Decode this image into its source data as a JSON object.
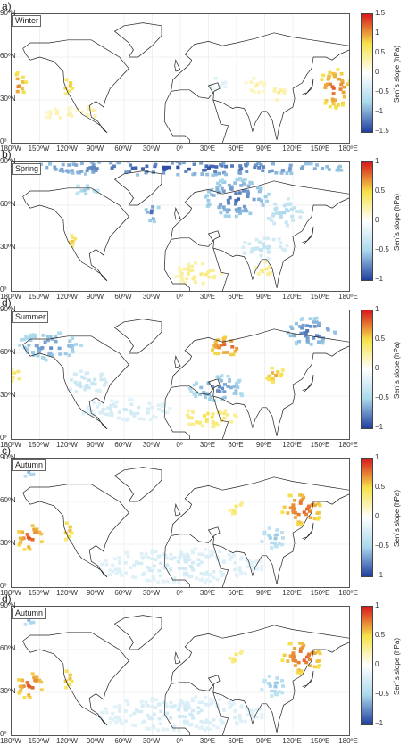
{
  "colorbar_title": "Sen´s slope (hPa)",
  "x_ticks": [
    "180ºW",
    "150ºW",
    "120ºW",
    "90ºW",
    "60ºW",
    "30ºW",
    "0º",
    "30ºE",
    "60ºE",
    "90ºE",
    "120ºE",
    "150ºE",
    "180ºE"
  ],
  "y_ticks": [
    "90ºN",
    "60ºN",
    "30ºN",
    "0º"
  ],
  "colors": {
    "neg_strong": "#1f3f9e",
    "neg_light": "#a9d8ec",
    "pos_light": "#f6e24a",
    "pos_strong": "#d7191c",
    "zero": "#ffffff",
    "land": "#222222"
  },
  "chart_data": [
    {
      "type": "heatmap",
      "panel_label": "a)",
      "season": "Winter",
      "xlim": [
        -180,
        180
      ],
      "ylim": [
        0,
        90
      ],
      "colorbar_ticks": [
        "1.5",
        "1",
        "0.5",
        "0",
        "−0.5",
        "−1",
        "−1.5"
      ],
      "clim": [
        -1.5,
        1.5
      ],
      "blobs": [
        {
          "lon": -175,
          "lat": 40,
          "rlon": 12,
          "rlat": 10,
          "value": 1.2
        },
        {
          "lon": -120,
          "lat": 40,
          "rlon": 8,
          "rlat": 6,
          "value": 1.0
        },
        {
          "lon": -125,
          "lat": 20,
          "rlon": 20,
          "rlat": 5,
          "value": 0.4
        },
        {
          "lon": -95,
          "lat": 22,
          "rlon": 10,
          "rlat": 5,
          "value": 0.5
        },
        {
          "lon": 80,
          "lat": 40,
          "rlon": 12,
          "rlat": 6,
          "value": 0.4
        },
        {
          "lon": 105,
          "lat": 35,
          "rlon": 8,
          "rlat": 6,
          "value": 0.5
        },
        {
          "lon": 165,
          "lat": 38,
          "rlon": 18,
          "rlat": 14,
          "value": 1.3
        },
        {
          "lon": 40,
          "lat": 42,
          "rlon": 10,
          "rlat": 5,
          "value": -0.4
        }
      ]
    },
    {
      "type": "heatmap",
      "panel_label": "b)",
      "season": "Spring",
      "xlim": [
        -180,
        180
      ],
      "ylim": [
        0,
        90
      ],
      "colorbar_ticks": [
        "1",
        "0.5",
        "0",
        "−0.5",
        "−1"
      ],
      "clim": [
        -1,
        1
      ],
      "blobs": [
        {
          "lon": 0,
          "lat": 86,
          "rlon": 180,
          "rlat": 5,
          "value": -1.0
        },
        {
          "lon": 60,
          "lat": 65,
          "rlon": 35,
          "rlat": 14,
          "value": -0.9
        },
        {
          "lon": -30,
          "lat": 55,
          "rlon": 8,
          "rlat": 7,
          "value": -0.9
        },
        {
          "lon": -100,
          "lat": 70,
          "rlon": 12,
          "rlat": 6,
          "value": -0.6
        },
        {
          "lon": -115,
          "lat": 35,
          "rlon": 5,
          "rlat": 4,
          "value": 0.6
        },
        {
          "lon": 20,
          "lat": 12,
          "rlon": 25,
          "rlat": 8,
          "value": 0.4
        },
        {
          "lon": 90,
          "lat": 15,
          "rlon": 10,
          "rlat": 6,
          "value": 0.4
        },
        {
          "lon": 90,
          "lat": 30,
          "rlon": 25,
          "rlat": 8,
          "value": -0.4
        },
        {
          "lon": 110,
          "lat": 55,
          "rlon": 20,
          "rlat": 10,
          "value": -0.5
        }
      ]
    },
    {
      "type": "heatmap",
      "panel_label": "d)",
      "season": "Summer",
      "xlim": [
        -180,
        180
      ],
      "ylim": [
        0,
        90
      ],
      "colorbar_ticks": [
        "1",
        "0.5",
        "0",
        "−0.5",
        "−1"
      ],
      "clim": [
        -1,
        1
      ],
      "blobs": [
        {
          "lon": -140,
          "lat": 65,
          "rlon": 35,
          "rlat": 10,
          "value": -0.8
        },
        {
          "lon": -100,
          "lat": 40,
          "rlon": 25,
          "rlat": 8,
          "value": -0.4
        },
        {
          "lon": 50,
          "lat": 65,
          "rlon": 20,
          "rlat": 7,
          "value": 0.9
        },
        {
          "lon": 140,
          "lat": 75,
          "rlon": 30,
          "rlat": 10,
          "value": -0.9
        },
        {
          "lon": 40,
          "lat": 35,
          "rlon": 30,
          "rlat": 10,
          "value": -0.8
        },
        {
          "lon": 30,
          "lat": 15,
          "rlon": 30,
          "rlat": 7,
          "value": 0.5
        },
        {
          "lon": 100,
          "lat": 45,
          "rlon": 12,
          "rlat": 6,
          "value": 0.7
        },
        {
          "lon": -60,
          "lat": 20,
          "rlon": 50,
          "rlat": 8,
          "value": -0.3
        },
        {
          "lon": -175,
          "lat": 45,
          "rlon": 6,
          "rlat": 6,
          "value": 0.5
        }
      ]
    },
    {
      "type": "heatmap",
      "panel_label": "c)",
      "season": "Autumn",
      "xlim": [
        -180,
        180
      ],
      "ylim": [
        0,
        90
      ],
      "colorbar_ticks": [
        "1",
        "0.5",
        "0",
        "−0.5",
        "−1"
      ],
      "clim": [
        -1,
        1
      ],
      "blobs": [
        {
          "lon": -160,
          "lat": 35,
          "rlon": 15,
          "rlat": 10,
          "value": 0.9
        },
        {
          "lon": -120,
          "lat": 40,
          "rlon": 7,
          "rlat": 7,
          "value": 0.7
        },
        {
          "lon": 130,
          "lat": 55,
          "rlon": 22,
          "rlat": 12,
          "value": 0.9
        },
        {
          "lon": 100,
          "lat": 35,
          "rlon": 15,
          "rlat": 8,
          "value": -0.6
        },
        {
          "lon": 0,
          "lat": 15,
          "rlon": 90,
          "rlat": 12,
          "value": -0.3
        },
        {
          "lon": -160,
          "lat": 82,
          "rlon": 12,
          "rlat": 5,
          "value": -0.7
        },
        {
          "lon": 60,
          "lat": 55,
          "rlon": 10,
          "rlat": 5,
          "value": 0.5
        }
      ]
    },
    {
      "type": "heatmap",
      "panel_label": "d)",
      "season": "Autumn",
      "xlim": [
        -180,
        180
      ],
      "ylim": [
        0,
        90
      ],
      "colorbar_ticks": [
        "1",
        "0.5",
        "0",
        "−0.5",
        "−1"
      ],
      "clim": [
        -1,
        1
      ],
      "blobs": [
        {
          "lon": -160,
          "lat": 35,
          "rlon": 15,
          "rlat": 10,
          "value": 0.9
        },
        {
          "lon": -120,
          "lat": 40,
          "rlon": 7,
          "rlat": 7,
          "value": 0.7
        },
        {
          "lon": 130,
          "lat": 55,
          "rlon": 22,
          "rlat": 12,
          "value": 0.9
        },
        {
          "lon": 100,
          "lat": 35,
          "rlon": 15,
          "rlat": 8,
          "value": -0.6
        },
        {
          "lon": 0,
          "lat": 15,
          "rlon": 90,
          "rlat": 12,
          "value": -0.3
        },
        {
          "lon": -160,
          "lat": 82,
          "rlon": 12,
          "rlat": 5,
          "value": -0.7
        },
        {
          "lon": 60,
          "lat": 55,
          "rlon": 10,
          "rlat": 5,
          "value": 0.5
        }
      ]
    }
  ]
}
